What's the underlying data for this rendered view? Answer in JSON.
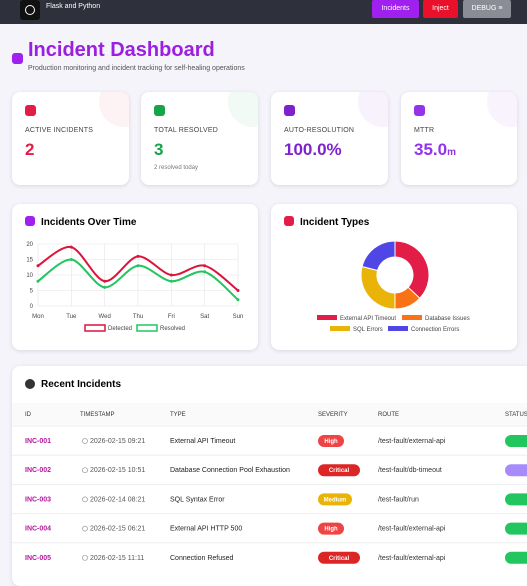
{
  "nav": {
    "brand": "Flask and Python",
    "buttons": [
      "Incidents",
      "Inject",
      "DEBUG ≡"
    ]
  },
  "header": {
    "title": "Incident Dashboard",
    "subtitle": "Production monitoring and incident tracking for self-healing operations"
  },
  "stats": [
    {
      "label": "ACTIVE INCIDENTS",
      "value": "2",
      "color": "#e11d48"
    },
    {
      "label": "TOTAL RESOLVED",
      "value": "3",
      "note": "2 resolved today",
      "color": "#16a34a"
    },
    {
      "label": "AUTO-RESOLUTION",
      "value": "100.0%",
      "color": "#7e22ce"
    },
    {
      "label": "MTTR",
      "value": "35.0",
      "unit": "m",
      "color": "#9333ea"
    }
  ],
  "charts": [
    {
      "type": "line",
      "title": "Incidents Over Time",
      "categories": [
        "Mon",
        "Tue",
        "Wed",
        "Thu",
        "Fri",
        "Sat",
        "Sun"
      ],
      "series": [
        {
          "name": "Detected",
          "color": "#dc143c",
          "values": [
            13,
            19,
            8,
            16,
            10,
            13,
            5
          ]
        },
        {
          "name": "Resolved",
          "color": "#22c55e",
          "values": [
            8,
            15,
            6,
            13,
            8,
            11,
            2
          ]
        }
      ],
      "ylim": [
        0,
        20
      ],
      "yticks": [
        0,
        5,
        10,
        15,
        20
      ],
      "grid": true
    },
    {
      "type": "pie",
      "title": "Incident Types",
      "categories": [
        "External API Timeout",
        "Database Issues",
        "SQL Errors",
        "Connection Errors"
      ],
      "values": [
        37,
        13,
        29,
        21
      ],
      "colors": [
        "#e11d48",
        "#f97316",
        "#eab308",
        "#4f46e5"
      ]
    }
  ],
  "table": {
    "title": "Recent Incidents",
    "columns": [
      "ID",
      "TIMESTAMP",
      "TYPE",
      "SEVERITY",
      "ROUTE",
      "STATUS"
    ],
    "rows": [
      [
        "INC-001",
        "2026-02-15 09:21",
        "External API Timeout",
        "High",
        "/test-fault/external-api"
      ],
      [
        "INC-002",
        "2026-02-15 10:51",
        "Database Connection Pool Exhaustion",
        "Critical",
        "/test-fault/db-timeout"
      ],
      [
        "INC-003",
        "2026-02-14 08:21",
        "SQL Syntax Error",
        "Medium",
        "/test-fault/run"
      ],
      [
        "INC-004",
        "2026-02-15 06:21",
        "External API HTTP 500",
        "High",
        "/test-fault/external-api"
      ],
      [
        "INC-005",
        "2026-02-15 11:11",
        "Connection Refused",
        "Critical",
        "/test-fault/external-api"
      ]
    ],
    "severity_colors": [
      "#ef4444",
      "#dc2626",
      "#eab308",
      "#ef4444",
      "#dc2626"
    ],
    "status_colors": [
      "#22c55e",
      "#a78bfa",
      "#22c55e",
      "#22c55e",
      "#22c55e"
    ]
  }
}
